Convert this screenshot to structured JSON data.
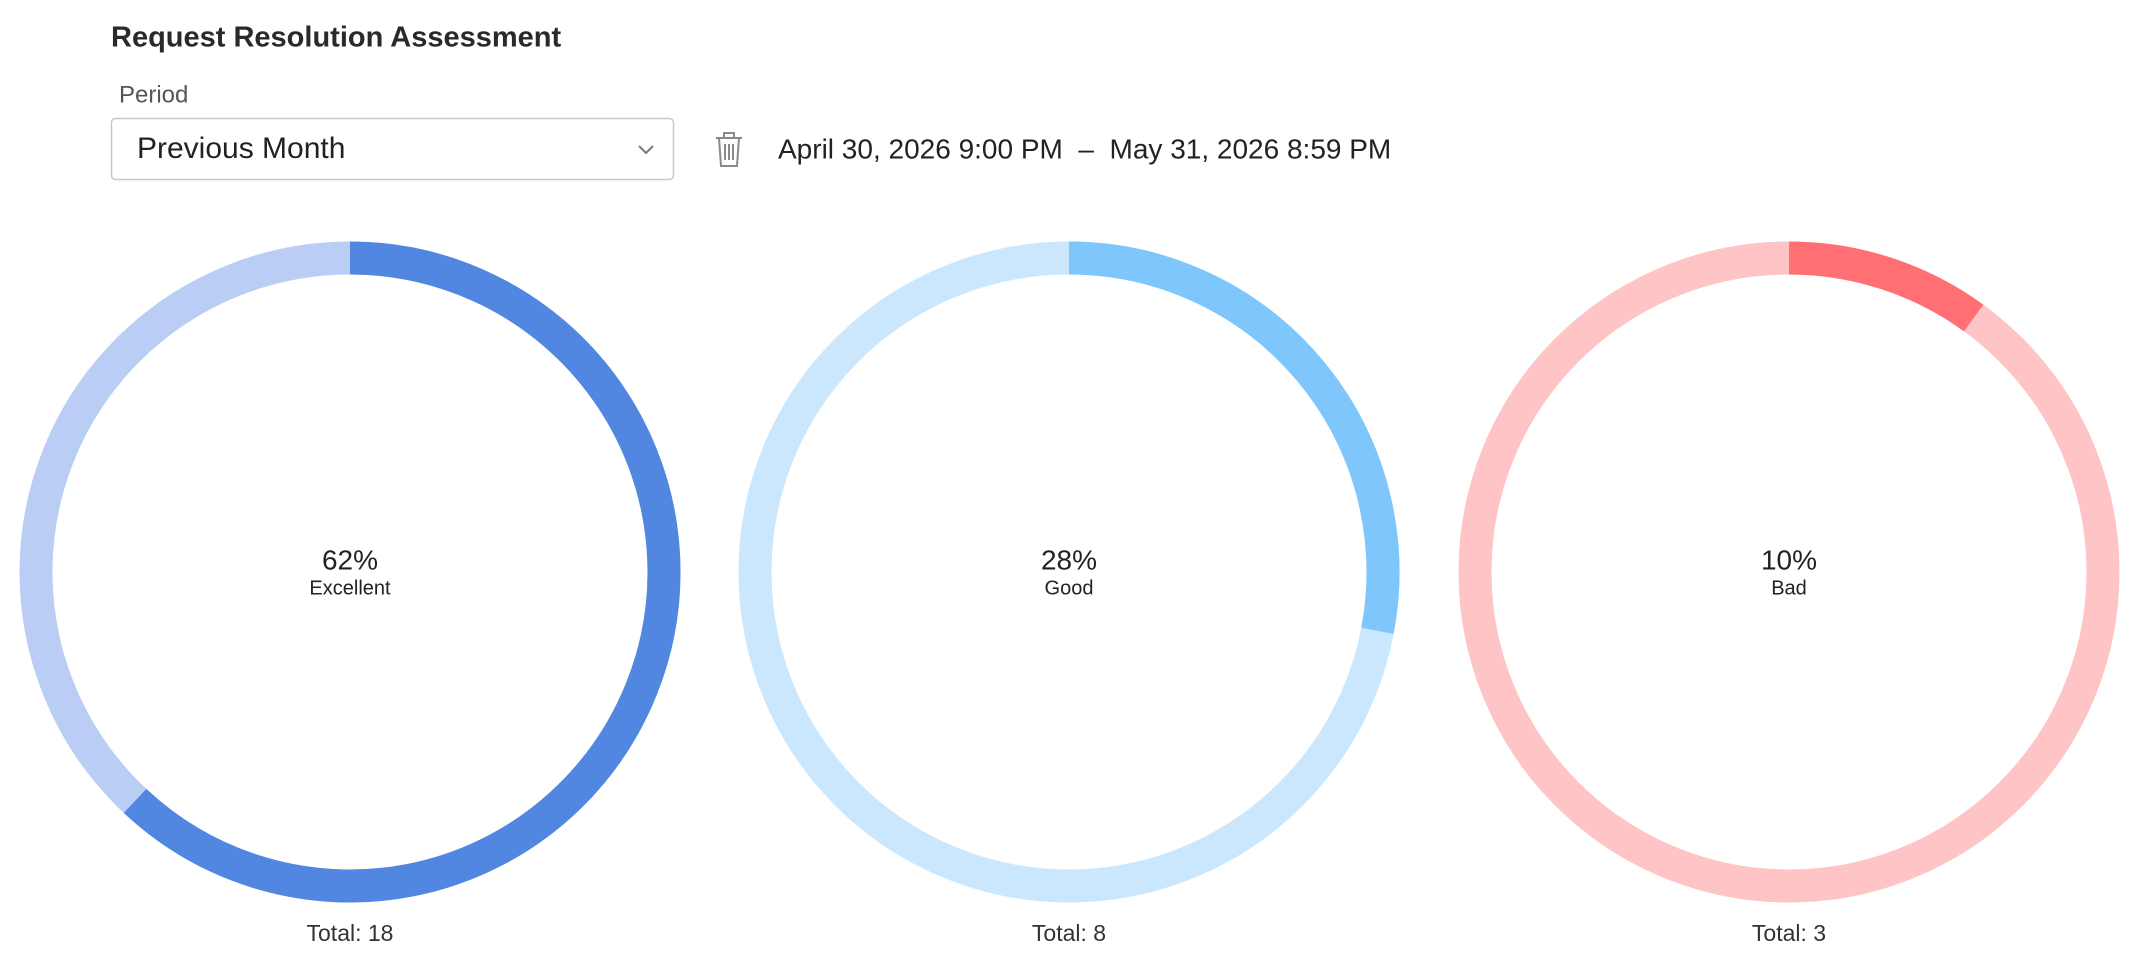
{
  "header": {
    "title": "Request Resolution Assessment"
  },
  "filter": {
    "label": "Period",
    "selected": "Previous Month",
    "date_range": "April 30, 2026 9:00 PM  –  May 31, 2026 8:59 PM"
  },
  "chart_data": [
    {
      "type": "donut",
      "categories": [
        "Excellent"
      ],
      "values": [
        62
      ],
      "value_labels": [
        "62%"
      ],
      "color": "#5187e0",
      "track_color": "#bacef5",
      "subtitle": "Total: 18"
    },
    {
      "type": "donut",
      "categories": [
        "Good"
      ],
      "values": [
        28
      ],
      "value_labels": [
        "28%"
      ],
      "color": "#7ec6fb",
      "track_color": "#cae7fd",
      "subtitle": "Total: 8"
    },
    {
      "type": "donut",
      "categories": [
        "Bad"
      ],
      "values": [
        10
      ],
      "value_labels": [
        "10%"
      ],
      "color": "#ff6f73",
      "track_color": "#ffc4c5",
      "subtitle": "Total: 3"
    }
  ]
}
